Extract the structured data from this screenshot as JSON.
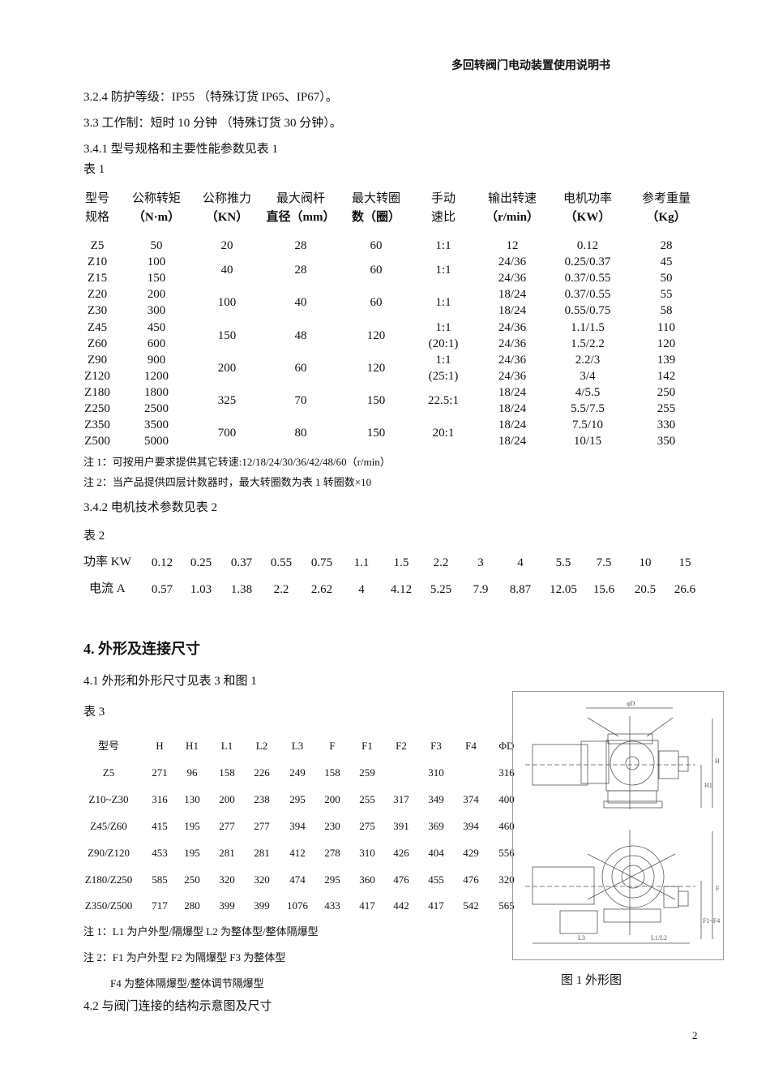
{
  "header_title": "多回转阀门电动装置使用说明书",
  "sections": {
    "s324": "3.2.4 防护等级：IP55 （特殊订货 IP65、IP67）。",
    "s33": "3.3  工作制：短时 10 分钟 （特殊订货 30 分钟）。",
    "s341": "3.4.1  型号规格和主要性能参数见表 1",
    "table1_label": "表 1",
    "s342": "3.4.2 电机技术参数见表 2",
    "table2_label": "表 2",
    "s4": "4.  外形及连接尺寸",
    "s41": "4.1  外形和外形尺寸见表 3 和图 1",
    "table3_label": "表 3",
    "s42": "4.2 与阀门连接的结构示意图及尺寸"
  },
  "table1": {
    "headers": [
      [
        "型号",
        "规格"
      ],
      [
        "公称转矩",
        "（N·m）"
      ],
      [
        "公称推力",
        "（KN）"
      ],
      [
        "最大阀杆",
        "直径（mm）"
      ],
      [
        "最大转圈",
        "数（圈）"
      ],
      [
        "手动",
        "速比"
      ],
      [
        "输出转速",
        "（r/min）"
      ],
      [
        "电机功率",
        "（KW）"
      ],
      [
        "参考重量",
        "（Kg）"
      ]
    ],
    "rows": [
      {
        "model": "Z5",
        "torque": "50",
        "speed": "12",
        "power": "0.12",
        "weight": "28"
      },
      {
        "model": "Z10",
        "torque": "100",
        "speed": "24/36",
        "power": "0.25/0.37",
        "weight": "45"
      },
      {
        "model": "Z15",
        "torque": "150",
        "speed": "24/36",
        "power": "0.37/0.55",
        "weight": "50"
      },
      {
        "model": "Z20",
        "torque": "200",
        "speed": "18/24",
        "power": "0.37/0.55",
        "weight": "55"
      },
      {
        "model": "Z30",
        "torque": "300",
        "speed": "18/24",
        "power": "0.55/0.75",
        "weight": "58"
      },
      {
        "model": "Z45",
        "torque": "450",
        "speed": "24/36",
        "power": "1.1/1.5",
        "weight": "110"
      },
      {
        "model": "Z60",
        "torque": "600",
        "speed": "24/36",
        "power": "1.5/2.2",
        "weight": "120"
      },
      {
        "model": "Z90",
        "torque": "900",
        "speed": "24/36",
        "power": "2.2/3",
        "weight": "139"
      },
      {
        "model": "Z120",
        "torque": "1200",
        "speed": "24/36",
        "power": "3/4",
        "weight": "142"
      },
      {
        "model": "Z180",
        "torque": "1800",
        "speed": "18/24",
        "power": "4/5.5",
        "weight": "250"
      },
      {
        "model": "Z250",
        "torque": "2500",
        "speed": "18/24",
        "power": "5.5/7.5",
        "weight": "255"
      },
      {
        "model": "Z350",
        "torque": "3500",
        "speed": "18/24",
        "power": "7.5/10",
        "weight": "330"
      },
      {
        "model": "Z500",
        "torque": "5000",
        "speed": "18/24",
        "power": "10/15",
        "weight": "350"
      }
    ],
    "groups": [
      {
        "rows": 1,
        "thrust": "20",
        "stem": "28",
        "turns": "60",
        "ratio": [
          "1:1"
        ]
      },
      {
        "rows": 2,
        "thrust": "40",
        "stem": "28",
        "turns": "60",
        "ratio": [
          "1:1"
        ]
      },
      {
        "rows": 2,
        "thrust": "100",
        "stem": "40",
        "turns": "60",
        "ratio": [
          "1:1"
        ]
      },
      {
        "rows": 2,
        "thrust": "150",
        "stem": "48",
        "turns": "120",
        "ratio": [
          "1:1",
          "(20:1)"
        ]
      },
      {
        "rows": 2,
        "thrust": "200",
        "stem": "60",
        "turns": "120",
        "ratio": [
          "1:1",
          "(25:1)"
        ]
      },
      {
        "rows": 2,
        "thrust": "325",
        "stem": "70",
        "turns": "150",
        "ratio": [
          "22.5:1"
        ]
      },
      {
        "rows": 2,
        "thrust": "700",
        "stem": "80",
        "turns": "150",
        "ratio": [
          "20:1"
        ]
      }
    ],
    "notes": [
      "注 1：可按用户要求提供其它转速:12/18/24/30/36/42/48/60（r/min）",
      "注 2：当产品提供四层计数器时，最大转圈数为表 1 转圈数×10"
    ]
  },
  "table2": {
    "power_label": "功率 KW",
    "current_label": "电流 A",
    "power": [
      "0.12",
      "0.25",
      "0.37",
      "0.55",
      "0.75",
      "1.1",
      "1.5",
      "2.2",
      "3",
      "4",
      "5.5",
      "7.5",
      "10",
      "15"
    ],
    "current": [
      "0.57",
      "1.03",
      "1.38",
      "2.2",
      "2.62",
      "4",
      "4.12",
      "5.25",
      "7.9",
      "8.87",
      "12.05",
      "15.6",
      "20.5",
      "26.6"
    ]
  },
  "table3": {
    "headers": [
      "型号",
      "H",
      "H1",
      "L1",
      "L2",
      "L3",
      "F",
      "F1",
      "F2",
      "F3",
      "F4",
      "ΦD"
    ],
    "rows": [
      [
        "Z5",
        "271",
        "96",
        "158",
        "226",
        "249",
        "158",
        "259",
        "",
        "310",
        "",
        "316"
      ],
      [
        "Z10~Z30",
        "316",
        "130",
        "200",
        "238",
        "295",
        "200",
        "255",
        "317",
        "349",
        "374",
        "400"
      ],
      [
        "Z45/Z60",
        "415",
        "195",
        "277",
        "277",
        "394",
        "230",
        "275",
        "391",
        "369",
        "394",
        "460"
      ],
      [
        "Z90/Z120",
        "453",
        "195",
        "281",
        "281",
        "412",
        "278",
        "310",
        "426",
        "404",
        "429",
        "556"
      ],
      [
        "Z180/Z250",
        "585",
        "250",
        "320",
        "320",
        "474",
        "295",
        "360",
        "476",
        "455",
        "476",
        "320"
      ],
      [
        "Z350/Z500",
        "717",
        "280",
        "399",
        "399",
        "1076",
        "433",
        "417",
        "442",
        "417",
        "542",
        "565"
      ]
    ],
    "notes": [
      "注 1：L1 为户外型/隔爆型      L2 为整体型/整体隔爆型",
      "注 2：F1 为户外型      F2 为隔爆型      F3 为整体型",
      "F4 为整体隔爆型/整体调节隔爆型"
    ]
  },
  "figure": {
    "caption": "图 1    外形图",
    "labels": {
      "phiD": "φD",
      "H": "H",
      "H1": "H1",
      "F": "F",
      "F1F4": "F1~F4",
      "L3": "L3",
      "L1L2": "L1/L2"
    }
  },
  "page_number": "2"
}
